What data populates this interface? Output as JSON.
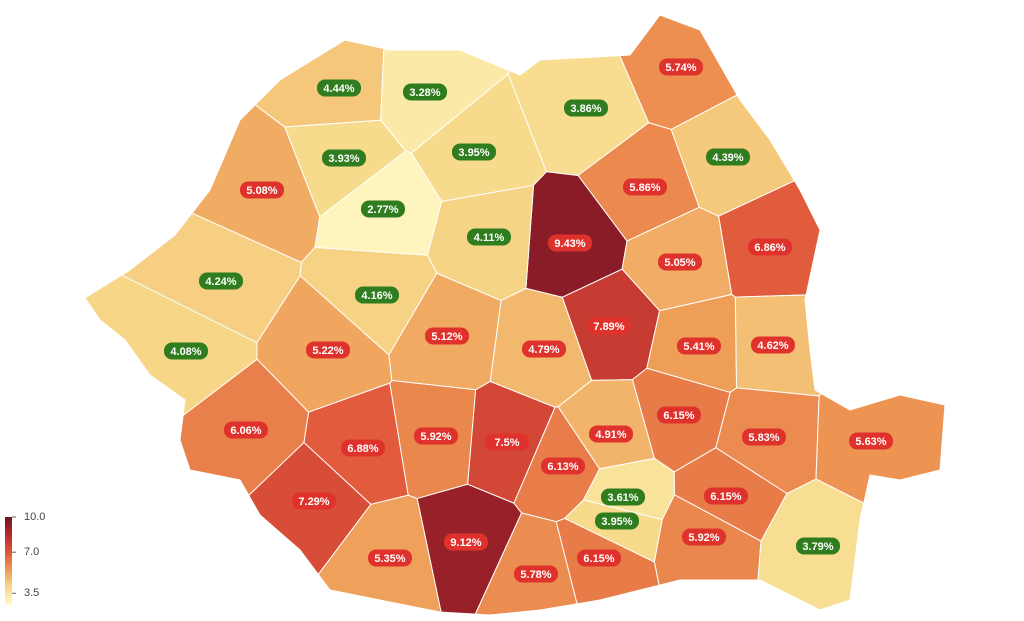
{
  "map": {
    "type": "choropleth",
    "regions": [
      {
        "value": 4.44,
        "label": "4.44%",
        "label_color": "#2f7d1f"
      },
      {
        "value": 3.28,
        "label": "3.28%",
        "label_color": "#2f7d1f"
      },
      {
        "value": 3.86,
        "label": "3.86%",
        "label_color": "#2f7d1f"
      },
      {
        "value": 5.74,
        "label": "5.74%",
        "label_color": "#e0322c"
      },
      {
        "value": 3.93,
        "label": "3.93%",
        "label_color": "#2f7d1f"
      },
      {
        "value": 3.95,
        "label": "3.95%",
        "label_color": "#2f7d1f"
      },
      {
        "value": 4.39,
        "label": "4.39%",
        "label_color": "#2f7d1f"
      },
      {
        "value": 5.08,
        "label": "5.08%",
        "label_color": "#e0322c"
      },
      {
        "value": 2.77,
        "label": "2.77%",
        "label_color": "#2f7d1f"
      },
      {
        "value": 5.86,
        "label": "5.86%",
        "label_color": "#e0322c"
      },
      {
        "value": 9.43,
        "label": "9.43%",
        "label_color": "#e0322c"
      },
      {
        "value": 6.86,
        "label": "6.86%",
        "label_color": "#e0322c"
      },
      {
        "value": 4.11,
        "label": "4.11%",
        "label_color": "#2f7d1f"
      },
      {
        "value": 4.24,
        "label": "4.24%",
        "label_color": "#2f7d1f"
      },
      {
        "value": 4.16,
        "label": "4.16%",
        "label_color": "#2f7d1f"
      },
      {
        "value": 5.05,
        "label": "5.05%",
        "label_color": "#e0322c"
      },
      {
        "value": 4.08,
        "label": "4.08%",
        "label_color": "#2f7d1f"
      },
      {
        "value": 5.22,
        "label": "5.22%",
        "label_color": "#e0322c"
      },
      {
        "value": 5.12,
        "label": "5.12%",
        "label_color": "#e0322c"
      },
      {
        "value": 4.79,
        "label": "4.79%",
        "label_color": "#e0322c"
      },
      {
        "value": 7.89,
        "label": "7.89%",
        "label_color": "#e0322c"
      },
      {
        "value": 5.41,
        "label": "5.41%",
        "label_color": "#e0322c"
      },
      {
        "value": 4.62,
        "label": "4.62%",
        "label_color": "#e0322c"
      },
      {
        "value": 6.06,
        "label": "6.06%",
        "label_color": "#e0322c"
      },
      {
        "value": 6.88,
        "label": "6.88%",
        "label_color": "#e0322c"
      },
      {
        "value": 5.92,
        "label": "5.92%",
        "label_color": "#e0322c"
      },
      {
        "value": 7.5,
        "label": "7.5%",
        "label_color": "#e0322c"
      },
      {
        "value": 6.13,
        "label": "6.13%",
        "label_color": "#e0322c"
      },
      {
        "value": 4.91,
        "label": "4.91%",
        "label_color": "#e0322c"
      },
      {
        "value": 6.15,
        "label": "6.15%",
        "label_color": "#e0322c"
      },
      {
        "value": 5.83,
        "label": "5.83%",
        "label_color": "#e0322c"
      },
      {
        "value": 5.63,
        "label": "5.63%",
        "label_color": "#e0322c"
      },
      {
        "value": 7.29,
        "label": "7.29%",
        "label_color": "#e0322c"
      },
      {
        "value": 9.12,
        "label": "9.12%",
        "label_color": "#e0322c"
      },
      {
        "value": 3.61,
        "label": "3.61%",
        "label_color": "#2f7d1f"
      },
      {
        "value": 3.95,
        "label": "3.95%",
        "label_color": "#2f7d1f"
      },
      {
        "value": 6.15,
        "label": "6.15%",
        "label_color": "#e0322c"
      },
      {
        "value": 5.92,
        "label": "5.92%",
        "label_color": "#e0322c"
      },
      {
        "value": 3.79,
        "label": "3.79%",
        "label_color": "#2f7d1f"
      },
      {
        "value": 5.35,
        "label": "5.35%",
        "label_color": "#e0322c"
      },
      {
        "value": 5.78,
        "label": "5.78%",
        "label_color": "#e0322c"
      },
      {
        "value": 6.15,
        "label": "6.15%",
        "label_color": "#e0322c"
      }
    ],
    "clim": [
      2.5,
      10
    ],
    "colors": [
      "#fffac8",
      "#f7d98a",
      "#ee9a55",
      "#e0553a",
      "#b52a2c",
      "#6e1424"
    ],
    "colorbar_ticks": [
      {
        "value": 10,
        "label": "10.0"
      },
      {
        "value": 7,
        "label": "7.0"
      },
      {
        "value": 3.5,
        "label": "3.5"
      }
    ]
  }
}
